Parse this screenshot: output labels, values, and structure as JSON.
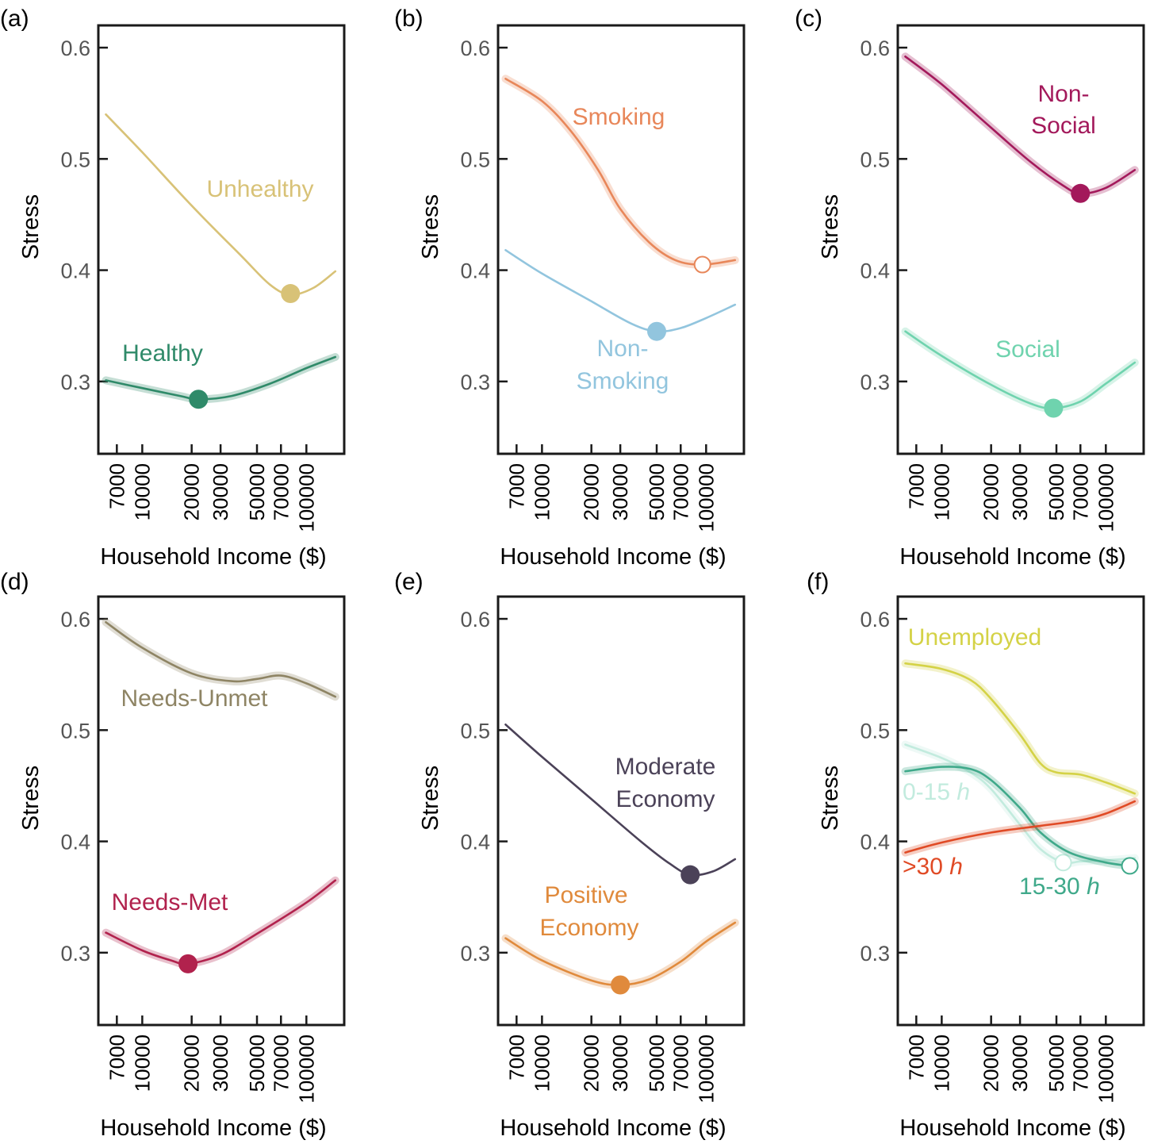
{
  "chart_data": [
    {
      "panel": "(a)",
      "type": "line",
      "xlabel": "Household Income ($)",
      "ylabel": "Stress",
      "xscale": "log",
      "ylim": [
        0.235,
        0.62
      ],
      "yticks": [
        "0.3",
        "0.4",
        "0.5",
        "0.6"
      ],
      "xticks": [
        "7000",
        "10000",
        "20000",
        "30000",
        "50000",
        "70000",
        "100000"
      ],
      "series": [
        {
          "name": "Unhealthy",
          "color": "#d8c277",
          "band": false,
          "x": [
            6000,
            10000,
            20000,
            40000,
            60000,
            80000,
            110000,
            150000
          ],
          "y": [
            0.54,
            0.506,
            0.458,
            0.413,
            0.387,
            0.378,
            0.384,
            0.399
          ],
          "marker": {
            "x": 80000,
            "y": 0.379,
            "filled": true
          }
        },
        {
          "name": "Healthy",
          "color": "#2f8a69",
          "band": true,
          "x": [
            6000,
            10000,
            17000,
            22000,
            35000,
            60000,
            100000,
            150000
          ],
          "y": [
            0.301,
            0.294,
            0.287,
            0.284,
            0.287,
            0.298,
            0.312,
            0.322
          ],
          "marker": {
            "x": 22000,
            "y": 0.284,
            "filled": true
          }
        }
      ]
    },
    {
      "panel": "(b)",
      "type": "line",
      "xlabel": "Household Income ($)",
      "ylabel": "Stress",
      "xscale": "log",
      "ylim": [
        0.235,
        0.62
      ],
      "yticks": [
        "0.3",
        "0.4",
        "0.5",
        "0.6"
      ],
      "xticks": [
        "7000",
        "10000",
        "20000",
        "30000",
        "50000",
        "70000",
        "100000"
      ],
      "series": [
        {
          "name": "Smoking",
          "color": "#e8875a",
          "band": true,
          "x": [
            6000,
            10000,
            15000,
            22000,
            30000,
            45000,
            65000,
            95000,
            150000
          ],
          "y": [
            0.572,
            0.552,
            0.525,
            0.49,
            0.455,
            0.425,
            0.409,
            0.405,
            0.409
          ],
          "marker": {
            "x": 95000,
            "y": 0.405,
            "filled": false
          }
        },
        {
          "name": "Non-Smoking",
          "color": "#92c5de",
          "band": false,
          "x": [
            6000,
            10000,
            20000,
            35000,
            50000,
            70000,
            100000,
            150000
          ],
          "y": [
            0.418,
            0.397,
            0.372,
            0.352,
            0.345,
            0.348,
            0.357,
            0.369
          ],
          "marker": {
            "x": 50000,
            "y": 0.345,
            "filled": true
          }
        }
      ]
    },
    {
      "panel": "(c)",
      "type": "line",
      "xlabel": "Household Income ($)",
      "ylabel": "Stress",
      "xscale": "log",
      "ylim": [
        0.235,
        0.62
      ],
      "yticks": [
        "0.3",
        "0.4",
        "0.5",
        "0.6"
      ],
      "xticks": [
        "7000",
        "10000",
        "20000",
        "30000",
        "50000",
        "70000",
        "100000"
      ],
      "series": [
        {
          "name": "Non-Social",
          "color": "#a3195b",
          "band": true,
          "x": [
            6000,
            10000,
            20000,
            35000,
            55000,
            70000,
            100000,
            150000
          ],
          "y": [
            0.592,
            0.567,
            0.528,
            0.497,
            0.476,
            0.469,
            0.474,
            0.49
          ],
          "marker": {
            "x": 70000,
            "y": 0.469,
            "filled": true
          }
        },
        {
          "name": "Social",
          "color": "#6fd3ae",
          "band": true,
          "x": [
            6000,
            10000,
            20000,
            35000,
            48000,
            70000,
            100000,
            150000
          ],
          "y": [
            0.345,
            0.323,
            0.297,
            0.28,
            0.276,
            0.282,
            0.298,
            0.317
          ],
          "marker": {
            "x": 48000,
            "y": 0.276,
            "filled": true
          }
        }
      ]
    },
    {
      "panel": "(d)",
      "type": "line",
      "xlabel": "Household Income ($)",
      "ylabel": "Stress",
      "xscale": "log",
      "ylim": [
        0.235,
        0.62
      ],
      "yticks": [
        "0.3",
        "0.4",
        "0.5",
        "0.6"
      ],
      "xticks": [
        "7000",
        "10000",
        "20000",
        "30000",
        "50000",
        "70000",
        "100000"
      ],
      "series": [
        {
          "name": "Needs-Unmet",
          "color": "#8e8464",
          "band": true,
          "x": [
            6000,
            10000,
            20000,
            35000,
            50000,
            70000,
            100000,
            150000
          ],
          "y": [
            0.597,
            0.574,
            0.551,
            0.544,
            0.546,
            0.549,
            0.542,
            0.53
          ]
        },
        {
          "name": "Needs-Met",
          "color": "#b1224d",
          "band": true,
          "x": [
            6000,
            10000,
            15000,
            19000,
            30000,
            50000,
            100000,
            150000
          ],
          "y": [
            0.318,
            0.302,
            0.293,
            0.29,
            0.298,
            0.317,
            0.345,
            0.365
          ],
          "marker": {
            "x": 19000,
            "y": 0.29,
            "filled": true
          }
        }
      ]
    },
    {
      "panel": "(e)",
      "type": "line",
      "xlabel": "Household Income ($)",
      "ylabel": "Stress",
      "xscale": "log",
      "ylim": [
        0.235,
        0.62
      ],
      "yticks": [
        "0.3",
        "0.4",
        "0.5",
        "0.6"
      ],
      "xticks": [
        "7000",
        "10000",
        "20000",
        "30000",
        "50000",
        "70000",
        "100000"
      ],
      "series": [
        {
          "name": "Moderate Economy",
          "color": "#4b4258",
          "band": false,
          "x": [
            6000,
            10000,
            20000,
            40000,
            60000,
            80000,
            110000,
            150000
          ],
          "y": [
            0.505,
            0.476,
            0.438,
            0.4,
            0.38,
            0.37,
            0.373,
            0.384
          ],
          "marker": {
            "x": 80000,
            "y": 0.37,
            "filled": true
          }
        },
        {
          "name": "Positive Economy",
          "color": "#e08a3c",
          "band": true,
          "x": [
            6000,
            10000,
            20000,
            30000,
            45000,
            70000,
            100000,
            150000
          ],
          "y": [
            0.313,
            0.293,
            0.275,
            0.271,
            0.276,
            0.292,
            0.31,
            0.327
          ],
          "marker": {
            "x": 30000,
            "y": 0.271,
            "filled": true
          }
        }
      ]
    },
    {
      "panel": "(f)",
      "type": "line",
      "xlabel": "Household Income ($)",
      "ylabel": "Stress",
      "xscale": "log",
      "ylim": [
        0.235,
        0.62
      ],
      "yticks": [
        "0.3",
        "0.4",
        "0.5",
        "0.6"
      ],
      "xticks": [
        "7000",
        "10000",
        "20000",
        "30000",
        "50000",
        "70000",
        "100000"
      ],
      "series": [
        {
          "name": "Unemployed",
          "color": "#d4d246",
          "band": true,
          "x": [
            6000,
            10000,
            15000,
            20000,
            30000,
            40000,
            50000,
            70000,
            100000,
            150000
          ],
          "y": [
            0.56,
            0.555,
            0.545,
            0.528,
            0.496,
            0.47,
            0.462,
            0.46,
            0.453,
            0.443
          ]
        },
        {
          "name": "0-15",
          "unit": "h",
          "color": "#c2ebde",
          "band": true,
          "x": [
            6000,
            10000,
            15000,
            20000,
            30000,
            40000,
            55000,
            70000,
            100000,
            150000
          ],
          "y": [
            0.487,
            0.475,
            0.462,
            0.447,
            0.415,
            0.393,
            0.381,
            0.382,
            0.383,
            0.385
          ],
          "marker": {
            "x": 55000,
            "y": 0.381,
            "filled": false
          }
        },
        {
          "name": "15-30",
          "unit": "h",
          "color": "#3fa98a",
          "band": true,
          "x": [
            6000,
            10000,
            15000,
            20000,
            30000,
            40000,
            60000,
            100000,
            140000,
            150000
          ],
          "y": [
            0.463,
            0.467,
            0.465,
            0.455,
            0.43,
            0.408,
            0.39,
            0.381,
            0.378,
            0.377
          ],
          "marker": {
            "x": 140000,
            "y": 0.378,
            "filled": false
          }
        },
        {
          "name": ">30",
          "unit": "h",
          "color": "#e04a25",
          "band": true,
          "x": [
            6000,
            10000,
            20000,
            40000,
            70000,
            100000,
            150000
          ],
          "y": [
            0.39,
            0.399,
            0.408,
            0.414,
            0.419,
            0.425,
            0.436
          ]
        }
      ]
    }
  ],
  "panel_labels": [
    "(a)",
    "(b)",
    "(c)",
    "(d)",
    "(e)",
    "(f)"
  ],
  "series_labels": {
    "unhealthy": "Unhealthy",
    "healthy": "Healthy",
    "smoking": "Smoking",
    "non_smoking_1": "Non-",
    "non_smoking_2": "Smoking",
    "non_social_1": "Non-",
    "non_social_2": "Social",
    "social": "Social",
    "needs_unmet": "Needs-Unmet",
    "needs_met": "Needs-Met",
    "moderate_1": "Moderate",
    "moderate_2": "Economy",
    "positive_1": "Positive",
    "positive_2": "Economy",
    "unemployed": "Unemployed",
    "hours_0_15": "0-15",
    "hours_gt30": ">30",
    "hours_15_30": "15-30",
    "hours_unit": "h"
  }
}
